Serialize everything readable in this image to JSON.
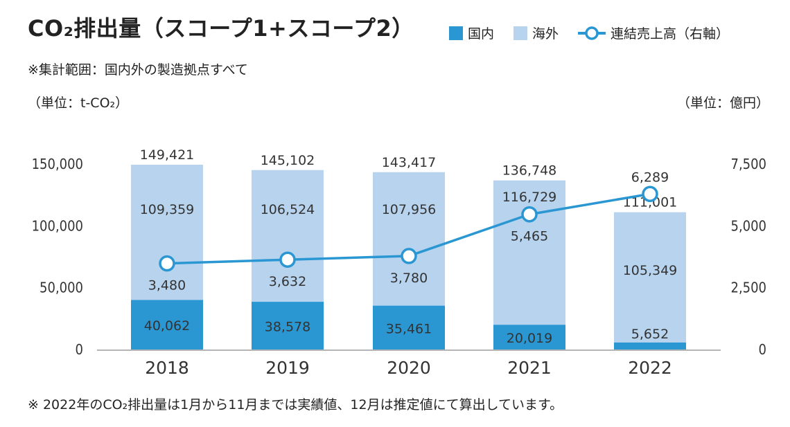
{
  "title": "CO₂排出量（スコープ1+スコープ2）",
  "subtitle": "※集計範囲：国内外の製造拠点すべて",
  "unit_left": "（単位：t-CO₂）",
  "unit_right": "（単位：億円）",
  "legend": {
    "domestic": "国内",
    "overseas": "海外",
    "sales": "連結売上高（右軸）"
  },
  "footnote": "※ 2022年のCO₂排出量は1月から11月までは実績値、12月は推定値にて算出しています。",
  "colors": {
    "domestic": "#2a97d3",
    "overseas": "#b7d3ee",
    "line": "#2a97d3",
    "last_domestic_label": "#2a97d3"
  },
  "chart_data": {
    "type": "bar",
    "stacked": true,
    "categories": [
      "2018",
      "2019",
      "2020",
      "2021",
      "2022"
    ],
    "series": [
      {
        "name": "国内",
        "values": [
          40062,
          38578,
          35461,
          20019,
          5652
        ]
      },
      {
        "name": "海外",
        "values": [
          109359,
          106524,
          107956,
          116729,
          105349
        ]
      }
    ],
    "totals": [
      "149,421",
      "145,102",
      "143,417",
      "136,748",
      "111,001"
    ],
    "domestic_labels": [
      "40,062",
      "38,578",
      "35,461",
      "20,019",
      "5,652"
    ],
    "overseas_labels": [
      "109,359",
      "106,524",
      "107,956",
      "116,729",
      "105,349"
    ],
    "line_series": {
      "name": "連結売上高（右軸）",
      "values": [
        3480,
        3632,
        3780,
        5465,
        6289
      ],
      "labels": [
        "3,480",
        "3,632",
        "3,780",
        "5,465",
        "6,289"
      ]
    },
    "ylim": [
      0,
      150000
    ],
    "yticks": [
      "0",
      "50,000",
      "100,000",
      "150,000"
    ],
    "y2lim": [
      0,
      7500
    ],
    "y2ticks": [
      "0",
      "2,500",
      "5,000",
      "7,500"
    ]
  }
}
